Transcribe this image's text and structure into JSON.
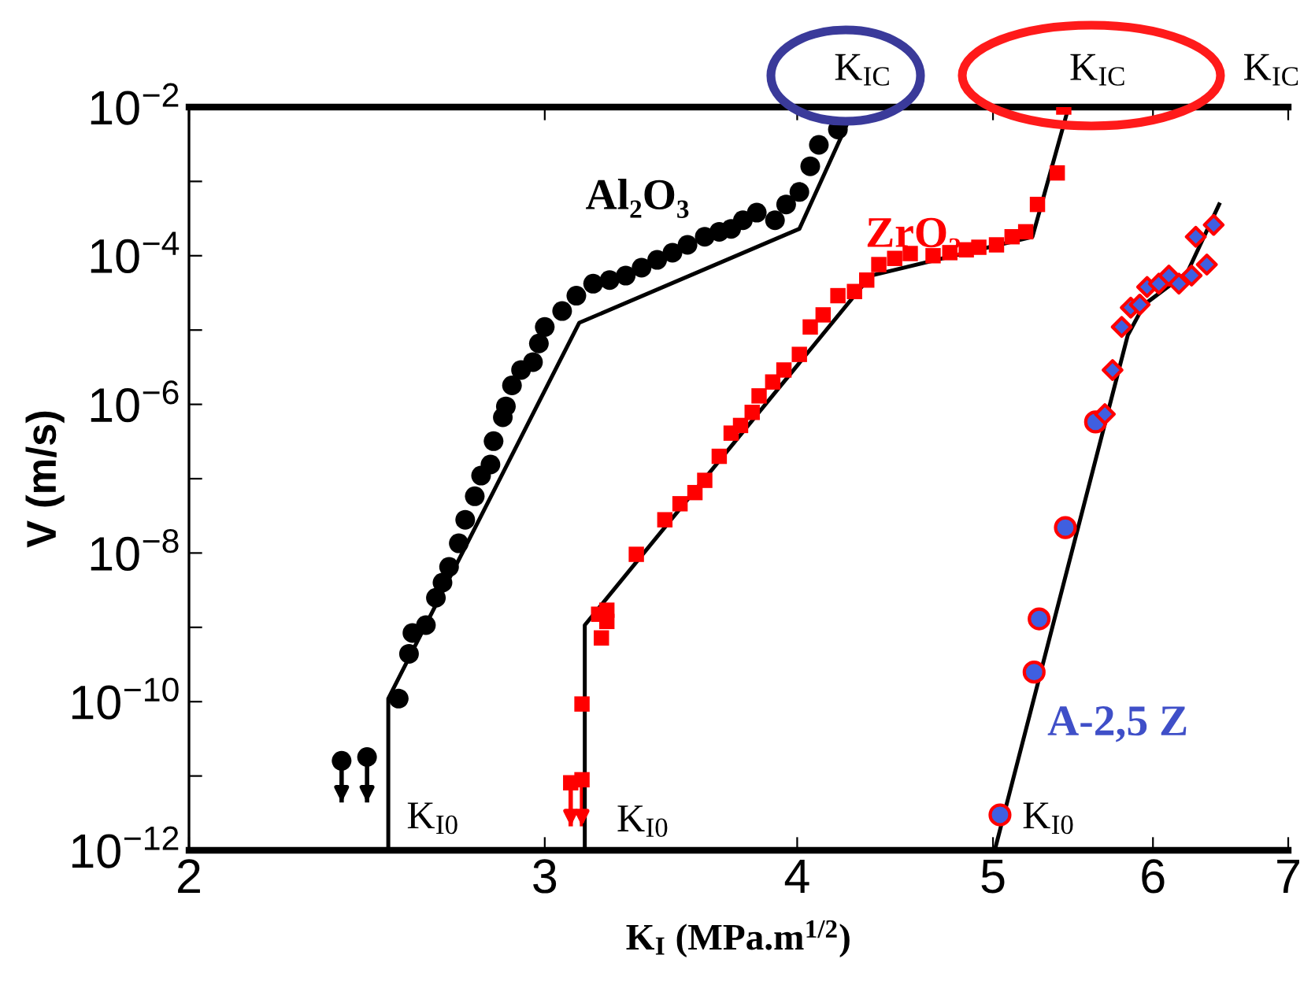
{
  "chart_data": {
    "type": "scatter",
    "xlabel": "K$_{I}$ (MPa.m$^{1/2}$)",
    "ylabel": "V (m/s)",
    "log": "xy",
    "xlim": [
      2,
      7
    ],
    "ylim": [
      1e-12,
      0.01
    ],
    "xticks": [
      2,
      3,
      4,
      5,
      6,
      7
    ],
    "yticks": [
      {
        "value": 1e-12,
        "label": "10$^{−12}$"
      },
      {
        "value": 1e-11,
        "label": null
      },
      {
        "value": 1e-10,
        "label": "10$^{−10}$"
      },
      {
        "value": 1e-09,
        "label": null
      },
      {
        "value": 1e-08,
        "label": "10$^{−8}$"
      },
      {
        "value": 1e-07,
        "label": null
      },
      {
        "value": 1e-06,
        "label": "10$^{−6}$"
      },
      {
        "value": 1e-05,
        "label": null
      },
      {
        "value": 0.0001,
        "label": "10$^{−4}$"
      },
      {
        "value": 0.001,
        "label": null
      },
      {
        "value": 0.01,
        "label": "10$^{−2}$"
      }
    ],
    "grid": false,
    "legend": false,
    "series": [
      {
        "name": "Al₂O₃",
        "marker": "circle",
        "color": "#000000",
        "x": [
          2.38,
          2.45,
          2.54,
          2.57,
          2.58,
          2.62,
          2.65,
          2.67,
          2.69,
          2.72,
          2.74,
          2.77,
          2.79,
          2.82,
          2.83,
          2.86,
          2.87,
          2.89,
          2.92,
          2.96,
          2.98,
          3.0,
          3.06,
          3.11,
          3.17,
          3.23,
          3.29,
          3.35,
          3.41,
          3.47,
          3.53,
          3.6,
          3.66,
          3.71,
          3.76,
          3.82,
          3.9,
          3.95,
          4.01,
          4.06,
          4.1,
          4.19
        ],
        "values": [
          1.6e-11,
          1.8e-11,
          1.1e-10,
          4.4e-10,
          8.4e-10,
          1.07e-09,
          2.5e-09,
          4e-09,
          6.5e-09,
          1.35e-08,
          2.8e-08,
          5.8e-08,
          1.1e-07,
          1.55e-07,
          3.2e-07,
          6.7e-07,
          9.4e-07,
          1.8e-06,
          2.9e-06,
          3.7e-06,
          6.6e-06,
          1.1e-05,
          1.8e-05,
          2.9e-05,
          4.2e-05,
          4.7e-05,
          5.4e-05,
          6.9e-05,
          8.8e-05,
          0.00011,
          0.00014,
          0.00018,
          0.00021,
          0.00023,
          0.0003,
          0.00038,
          0.0003,
          0.00049,
          0.00072,
          0.0016,
          0.0031,
          0.005
        ],
        "errors": [
          [
            4.4e-12,
            1.6e-11
          ],
          [
            4.4e-12,
            1.8e-11
          ],
          null,
          null,
          null,
          null,
          null,
          null,
          null,
          null,
          null,
          null,
          null,
          null,
          null,
          null,
          null,
          null,
          null,
          null,
          null,
          null,
          null,
          null,
          null,
          null,
          null,
          null,
          null,
          null,
          null,
          null,
          null,
          null,
          null,
          null,
          null,
          null,
          null,
          null,
          null,
          null
        ]
      },
      {
        "name": "ZrO₂",
        "marker": "square",
        "color": "#ff0000",
        "x": [
          3.09,
          3.13,
          3.13,
          3.2,
          3.22,
          3.19,
          3.22,
          3.33,
          3.44,
          3.5,
          3.56,
          3.6,
          3.66,
          3.71,
          3.75,
          3.8,
          3.83,
          3.89,
          3.94,
          4.01,
          4.06,
          4.12,
          4.19,
          4.27,
          4.33,
          4.39,
          4.47,
          4.55,
          4.67,
          4.76,
          4.85,
          4.92,
          5.02,
          5.11,
          5.19,
          5.26,
          5.38,
          5.42
        ],
        "values": [
          8.1e-12,
          8.9e-12,
          9.3e-11,
          7.2e-10,
          1.2e-09,
          1.5e-09,
          1.7e-09,
          9.6e-09,
          2.8e-08,
          4.6e-08,
          6.5e-08,
          9.5e-08,
          2e-07,
          4.1e-07,
          5.2e-07,
          7.8e-07,
          1.3e-06,
          2e-06,
          2.9e-06,
          4.7e-06,
          1.1e-05,
          1.6e-05,
          2.9e-05,
          3.3e-05,
          4.7e-05,
          7.6e-05,
          9.2e-05,
          0.000107,
          0.0001,
          0.00011,
          0.00012,
          0.00013,
          0.00014,
          0.00018,
          0.00021,
          0.00049,
          0.0013,
          0.01
        ],
        "errors": [
          [
            2.1e-12,
            8.1e-12
          ],
          [
            2.1e-12,
            8.9e-12
          ],
          null,
          null,
          null,
          null,
          null,
          null,
          null,
          null,
          null,
          null,
          null,
          null,
          null,
          null,
          null,
          null,
          null,
          null,
          null,
          null,
          null,
          null,
          null,
          null,
          null,
          null,
          null,
          null,
          null,
          null,
          null,
          null,
          null,
          null,
          null,
          null
        ]
      },
      {
        "name": "A-2,5 Z",
        "marker": "circle",
        "color": "#3f5fe0",
        "x": [
          5.04,
          5.24,
          5.27,
          5.43,
          5.62
        ],
        "values": [
          3e-12,
          2.5e-10,
          1.3e-09,
          2.2e-08,
          5.8e-07
        ]
      },
      {
        "marker": "diamond",
        "color": "#3f5fe0",
        "x": [
          5.68,
          5.73,
          5.79,
          5.85,
          5.91,
          5.96,
          6.04,
          6.11,
          6.18,
          6.27,
          6.38,
          6.3,
          6.43
        ],
        "values": [
          7.4e-07,
          2.9e-06,
          1.1e-05,
          2e-05,
          2.2e-05,
          3.8e-05,
          4.2e-05,
          5.4e-05,
          4.2e-05,
          5.4e-05,
          7.6e-05,
          0.00018,
          0.00026
        ]
      },
      {
        "type": "line",
        "marker": "none",
        "line_style": "solid",
        "color": "#000000",
        "x": [
          2.51,
          2.51,
          3.12,
          4.01,
          4.23
        ],
        "values": [
          1e-12,
          1.1e-10,
          1.25e-05,
          0.00023,
          0.0056
        ]
      },
      {
        "type": "line",
        "marker": "none",
        "line_style": "solid",
        "color": "#000000",
        "x": [
          3.14,
          3.14,
          4.35,
          5.23,
          5.45
        ],
        "values": [
          1e-12,
          1.07e-09,
          5.4e-05,
          0.00018,
          0.01
        ]
      },
      {
        "type": "line",
        "marker": "none",
        "line_style": "solid",
        "color": "#000000",
        "x": [
          5.01,
          5.83,
          5.94,
          6.24,
          6.47
        ],
        "values": [
          1e-12,
          8.5e-06,
          2.2e-05,
          6e-05,
          0.00049
        ]
      }
    ],
    "annotations": [
      "K$_{IC}$",
      "K$_{IC}$",
      "K$_{IC}$",
      "K$_{I0}$",
      "K$_{I0}$",
      "K$_{I0}$"
    ]
  }
}
